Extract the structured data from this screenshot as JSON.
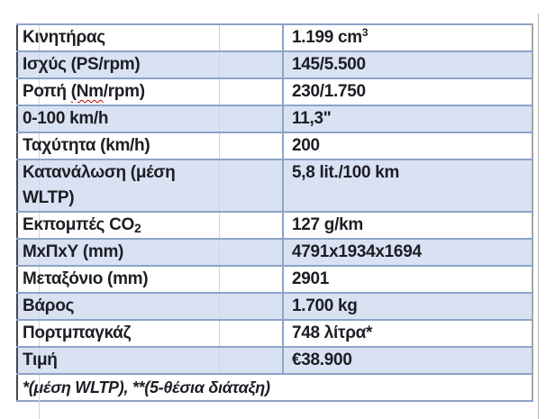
{
  "table": {
    "rows": [
      {
        "label": "Κινητήρας",
        "value_main": "1.199 cm",
        "value_sup": "3"
      },
      {
        "label": "Ισχύς (PS/rpm)",
        "value": "145/5.500"
      },
      {
        "label_prefix": "Ροπή ",
        "label_flagged": "(Nm",
        "label_suffix": "/rpm)",
        "value": "230/1.750"
      },
      {
        "label": "0-100 km/h",
        "value": "11,3\""
      },
      {
        "label": "Ταχύτητα (km/h)",
        "value": "200"
      },
      {
        "label_line1": "Κατανάλωση (μέση",
        "label_line2": "WLTP)",
        "value": "5,8 lit./100 km"
      },
      {
        "label_main": "Εκπομπές CO",
        "label_sub": "2",
        "value": "127 g/km"
      },
      {
        "label": "ΜxΠxΥ (mm)",
        "value": "4791x1934x1694"
      },
      {
        "label": "Μεταξόνιο (mm)",
        "value": "2901"
      },
      {
        "label": "Βάρος",
        "value": "1.700 kg"
      },
      {
        "label": "Πορτμπαγκάζ",
        "value": "748 λίτρα*"
      },
      {
        "label": "Τιμή",
        "value": "€38.900"
      }
    ],
    "footnote": "*(μέση WLTP), **(5-θέσια διάταξη)"
  },
  "colors": {
    "row_shading": "#d9e2f3",
    "border_blue": "#8da3c8",
    "border_dark": "#46464e",
    "border_gray": "#a6a6a6",
    "gridline_gray": "#d4d4d4",
    "page_edge_gray": "#b5b5b5",
    "text_color": "#1d1d24",
    "spellcheck_red": "#c00000"
  }
}
